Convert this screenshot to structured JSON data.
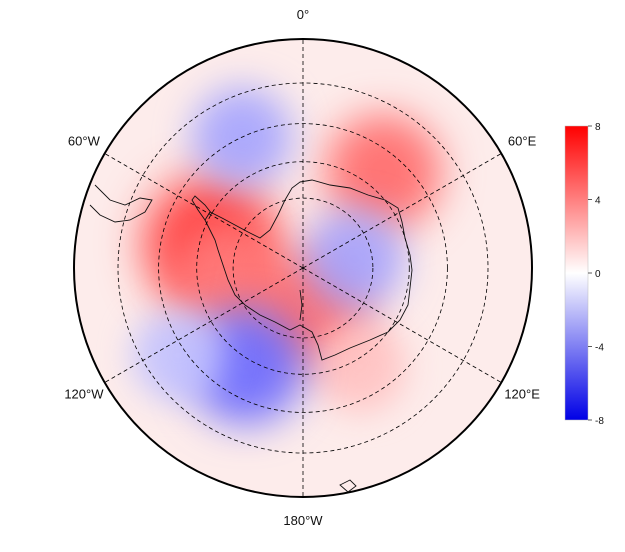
{
  "chart_data": {
    "type": "heatmap",
    "projection": "south-polar-stereographic",
    "title": "",
    "longitude_labels": [
      {
        "lon_deg": 0,
        "text": "0°"
      },
      {
        "lon_deg": 60,
        "text": "60°E"
      },
      {
        "lon_deg": 120,
        "text": "120°E"
      },
      {
        "lon_deg": 180,
        "text": "180°W"
      },
      {
        "lon_deg": -120,
        "text": "120°W"
      },
      {
        "lon_deg": -60,
        "text": "60°W"
      }
    ],
    "meridians_deg": [
      0,
      60,
      120,
      180,
      240,
      300
    ],
    "latitude_circles_deg": [
      -70,
      -60,
      -50,
      -40
    ],
    "colorbar": {
      "vmin": -8,
      "vmax": 8,
      "ticks": [
        8,
        4,
        0,
        -4,
        -8
      ],
      "tick_labels": [
        "8",
        "4",
        "0",
        "-4",
        "-8"
      ],
      "colors": {
        "low": "#0000e6",
        "mid": "#ffffff",
        "high": "#ff0000"
      }
    },
    "anomaly_features": [
      {
        "desc": "positive",
        "lon_deg": -75,
        "lat_deg": -63,
        "value": 7
      },
      {
        "desc": "positive",
        "lon_deg": -95,
        "lat_deg": -68,
        "value": 4
      },
      {
        "desc": "positive",
        "lon_deg": 40,
        "lat_deg": -55,
        "value": 5
      },
      {
        "desc": "positive",
        "lon_deg": 170,
        "lat_deg": -78,
        "value": 5
      },
      {
        "desc": "positive",
        "lon_deg": 150,
        "lat_deg": -58,
        "value": 2
      },
      {
        "desc": "negative",
        "lon_deg": -25,
        "lat_deg": -50,
        "value": -3
      },
      {
        "desc": "negative",
        "lon_deg": 80,
        "lat_deg": -75,
        "value": -3
      },
      {
        "desc": "negative",
        "lon_deg": -150,
        "lat_deg": -58,
        "value": -5
      },
      {
        "desc": "negative",
        "lon_deg": -125,
        "lat_deg": -48,
        "value": -2
      }
    ]
  }
}
